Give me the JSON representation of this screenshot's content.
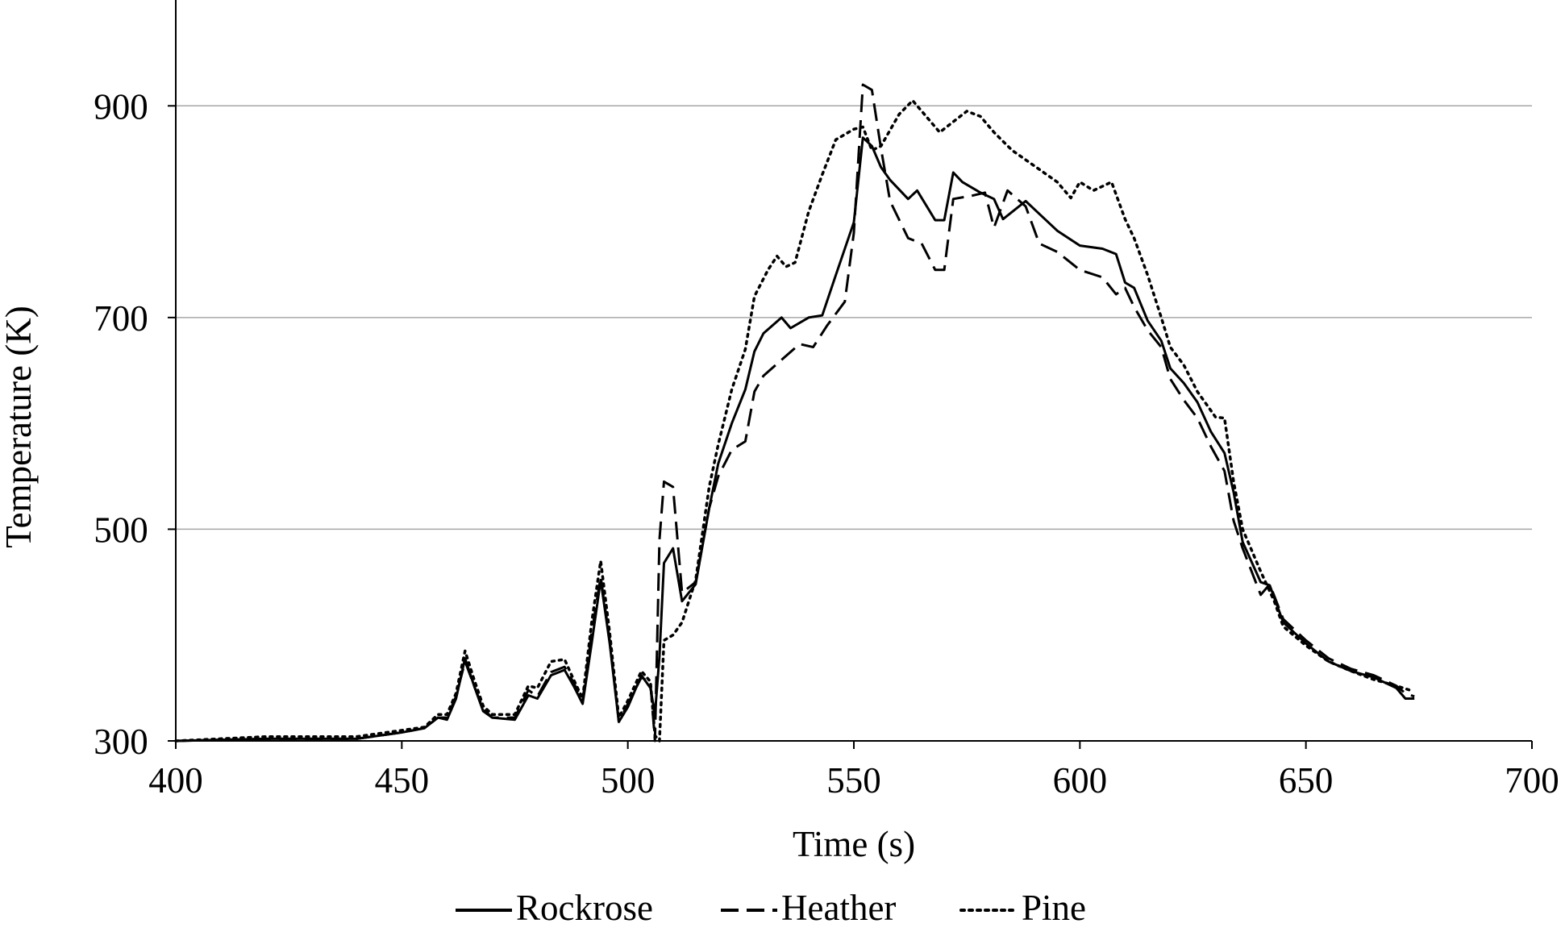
{
  "chart_data": {
    "type": "line",
    "title": "",
    "xlabel": "Time (s)",
    "ylabel": "Temperature (K)",
    "xlim": [
      400,
      700
    ],
    "ylim": [
      300,
      1000
    ],
    "xticks": [
      400,
      450,
      500,
      550,
      600,
      650,
      700
    ],
    "yticks": [
      300,
      500,
      700,
      900
    ],
    "grid": "horizontal",
    "legend_position": "bottom",
    "series": [
      {
        "name": "Rockrose",
        "style": "solid",
        "color": "#000000",
        "points": [
          [
            400,
            300
          ],
          [
            420,
            302
          ],
          [
            440,
            302
          ],
          [
            450,
            308
          ],
          [
            455,
            312
          ],
          [
            458,
            322
          ],
          [
            460,
            320
          ],
          [
            462,
            340
          ],
          [
            464,
            378
          ],
          [
            466,
            352
          ],
          [
            468,
            328
          ],
          [
            470,
            322
          ],
          [
            475,
            320
          ],
          [
            478,
            343
          ],
          [
            480,
            340
          ],
          [
            483,
            362
          ],
          [
            486,
            367
          ],
          [
            488,
            352
          ],
          [
            490,
            335
          ],
          [
            492,
            392
          ],
          [
            494,
            452
          ],
          [
            496,
            392
          ],
          [
            498,
            318
          ],
          [
            500,
            332
          ],
          [
            503,
            362
          ],
          [
            505,
            350
          ],
          [
            506,
            325
          ],
          [
            507,
            380
          ],
          [
            508,
            468
          ],
          [
            510,
            482
          ],
          [
            512,
            432
          ],
          [
            515,
            448
          ],
          [
            518,
            520
          ],
          [
            520,
            562
          ],
          [
            523,
            600
          ],
          [
            526,
            632
          ],
          [
            528,
            668
          ],
          [
            530,
            685
          ],
          [
            534,
            700
          ],
          [
            536,
            690
          ],
          [
            540,
            700
          ],
          [
            543,
            702
          ],
          [
            546,
            740
          ],
          [
            550,
            790
          ],
          [
            552,
            870
          ],
          [
            554,
            862
          ],
          [
            556,
            842
          ],
          [
            558,
            830
          ],
          [
            562,
            812
          ],
          [
            564,
            820
          ],
          [
            568,
            792
          ],
          [
            570,
            792
          ],
          [
            572,
            837
          ],
          [
            574,
            828
          ],
          [
            578,
            818
          ],
          [
            581,
            812
          ],
          [
            583,
            793
          ],
          [
            588,
            810
          ],
          [
            591,
            798
          ],
          [
            595,
            782
          ],
          [
            600,
            768
          ],
          [
            605,
            765
          ],
          [
            608,
            760
          ],
          [
            610,
            733
          ],
          [
            612,
            728
          ],
          [
            615,
            697
          ],
          [
            618,
            678
          ],
          [
            620,
            652
          ],
          [
            623,
            638
          ],
          [
            626,
            620
          ],
          [
            629,
            592
          ],
          [
            632,
            572
          ],
          [
            634,
            535
          ],
          [
            636,
            488
          ],
          [
            640,
            450
          ],
          [
            642,
            447
          ],
          [
            645,
            412
          ],
          [
            650,
            392
          ],
          [
            655,
            375
          ],
          [
            660,
            366
          ],
          [
            665,
            360
          ],
          [
            670,
            350
          ],
          [
            672,
            340
          ],
          [
            674,
            340
          ]
        ]
      },
      {
        "name": "Heather",
        "style": "dashed",
        "color": "#000000",
        "points": [
          [
            400,
            300
          ],
          [
            420,
            302
          ],
          [
            440,
            302
          ],
          [
            450,
            308
          ],
          [
            455,
            312
          ],
          [
            458,
            322
          ],
          [
            460,
            322
          ],
          [
            462,
            342
          ],
          [
            464,
            375
          ],
          [
            466,
            352
          ],
          [
            468,
            330
          ],
          [
            470,
            322
          ],
          [
            475,
            322
          ],
          [
            478,
            348
          ],
          [
            480,
            342
          ],
          [
            483,
            365
          ],
          [
            486,
            370
          ],
          [
            488,
            355
          ],
          [
            490,
            338
          ],
          [
            492,
            402
          ],
          [
            494,
            455
          ],
          [
            496,
            395
          ],
          [
            498,
            318
          ],
          [
            500,
            335
          ],
          [
            503,
            360
          ],
          [
            505,
            355
          ],
          [
            506,
            300
          ],
          [
            507,
            490
          ],
          [
            508,
            545
          ],
          [
            510,
            540
          ],
          [
            512,
            440
          ],
          [
            515,
            450
          ],
          [
            518,
            520
          ],
          [
            520,
            550
          ],
          [
            523,
            575
          ],
          [
            526,
            583
          ],
          [
            528,
            630
          ],
          [
            530,
            645
          ],
          [
            534,
            660
          ],
          [
            538,
            675
          ],
          [
            541,
            672
          ],
          [
            544,
            692
          ],
          [
            548,
            715
          ],
          [
            550,
            780
          ],
          [
            552,
            920
          ],
          [
            554,
            915
          ],
          [
            556,
            860
          ],
          [
            558,
            810
          ],
          [
            562,
            775
          ],
          [
            565,
            770
          ],
          [
            568,
            745
          ],
          [
            570,
            745
          ],
          [
            572,
            812
          ],
          [
            576,
            815
          ],
          [
            579,
            818
          ],
          [
            581,
            785
          ],
          [
            584,
            820
          ],
          [
            588,
            805
          ],
          [
            591,
            770
          ],
          [
            595,
            762
          ],
          [
            600,
            745
          ],
          [
            605,
            738
          ],
          [
            608,
            722
          ],
          [
            610,
            728
          ],
          [
            612,
            710
          ],
          [
            615,
            688
          ],
          [
            618,
            672
          ],
          [
            620,
            642
          ],
          [
            623,
            622
          ],
          [
            626,
            605
          ],
          [
            629,
            578
          ],
          [
            632,
            555
          ],
          [
            634,
            508
          ],
          [
            636,
            482
          ],
          [
            640,
            438
          ],
          [
            642,
            448
          ],
          [
            645,
            415
          ],
          [
            650,
            395
          ],
          [
            655,
            378
          ],
          [
            660,
            368
          ],
          [
            665,
            362
          ],
          [
            670,
            352
          ],
          [
            672,
            345
          ],
          [
            674,
            342
          ]
        ]
      },
      {
        "name": "Pine",
        "style": "dotted",
        "color": "#000000",
        "points": [
          [
            400,
            300
          ],
          [
            420,
            304
          ],
          [
            440,
            304
          ],
          [
            450,
            310
          ],
          [
            455,
            313
          ],
          [
            458,
            325
          ],
          [
            460,
            325
          ],
          [
            462,
            345
          ],
          [
            464,
            385
          ],
          [
            466,
            358
          ],
          [
            468,
            333
          ],
          [
            470,
            325
          ],
          [
            475,
            325
          ],
          [
            478,
            352
          ],
          [
            480,
            350
          ],
          [
            483,
            375
          ],
          [
            486,
            377
          ],
          [
            488,
            358
          ],
          [
            490,
            340
          ],
          [
            492,
            412
          ],
          [
            494,
            470
          ],
          [
            496,
            402
          ],
          [
            498,
            322
          ],
          [
            500,
            338
          ],
          [
            503,
            366
          ],
          [
            505,
            356
          ],
          [
            506,
            305
          ],
          [
            507,
            300
          ],
          [
            508,
            395
          ],
          [
            510,
            400
          ],
          [
            512,
            412
          ],
          [
            515,
            452
          ],
          [
            518,
            540
          ],
          [
            520,
            580
          ],
          [
            523,
            632
          ],
          [
            526,
            670
          ],
          [
            528,
            720
          ],
          [
            531,
            745
          ],
          [
            533,
            758
          ],
          [
            535,
            748
          ],
          [
            537,
            752
          ],
          [
            540,
            800
          ],
          [
            543,
            835
          ],
          [
            546,
            868
          ],
          [
            550,
            878
          ],
          [
            552,
            880
          ],
          [
            554,
            858
          ],
          [
            556,
            862
          ],
          [
            560,
            892
          ],
          [
            563,
            905
          ],
          [
            566,
            890
          ],
          [
            569,
            875
          ],
          [
            572,
            885
          ],
          [
            575,
            895
          ],
          [
            578,
            890
          ],
          [
            581,
            875
          ],
          [
            585,
            858
          ],
          [
            590,
            843
          ],
          [
            595,
            828
          ],
          [
            598,
            813
          ],
          [
            600,
            828
          ],
          [
            603,
            820
          ],
          [
            607,
            828
          ],
          [
            610,
            793
          ],
          [
            612,
            775
          ],
          [
            615,
            740
          ],
          [
            618,
            700
          ],
          [
            620,
            672
          ],
          [
            623,
            655
          ],
          [
            626,
            630
          ],
          [
            630,
            606
          ],
          [
            632,
            605
          ],
          [
            634,
            545
          ],
          [
            636,
            500
          ],
          [
            640,
            460
          ],
          [
            643,
            432
          ],
          [
            645,
            408
          ],
          [
            650,
            390
          ],
          [
            655,
            375
          ],
          [
            660,
            366
          ],
          [
            665,
            358
          ],
          [
            670,
            352
          ],
          [
            673,
            348
          ]
        ]
      }
    ]
  }
}
